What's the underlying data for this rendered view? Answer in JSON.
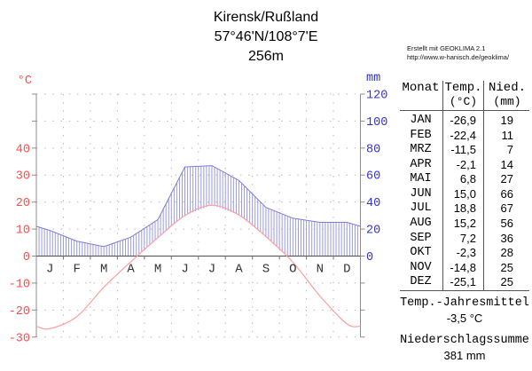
{
  "title": {
    "station": "Kirensk/Rußland",
    "coordinates": "57°46'N/108°7'E",
    "elevation": "256m"
  },
  "credit": {
    "line1": "Erstellt mit GEOKLIMA 2.1",
    "line2": "http://www.w-hanisch.de/geoklima/"
  },
  "chart_data": {
    "type": "line",
    "title": "Klimadiagramm Kirensk/Rußland",
    "categories": [
      "J",
      "F",
      "M",
      "A",
      "M",
      "J",
      "J",
      "A",
      "S",
      "O",
      "N",
      "D"
    ],
    "series": [
      {
        "name": "Temperatur",
        "unit": "°C",
        "axis": "left",
        "values": [
          -26.9,
          -22.4,
          -11.5,
          -2.1,
          6.8,
          15.0,
          18.8,
          15.2,
          7.2,
          -2.3,
          -14.8,
          -25.1
        ]
      },
      {
        "name": "Niederschlag",
        "unit": "mm",
        "axis": "right",
        "values": [
          19,
          11,
          7,
          14,
          27,
          66,
          67,
          56,
          36,
          28,
          25,
          25
        ]
      }
    ],
    "left_axis": {
      "label": "°C",
      "tick_labels": [
        40,
        30,
        20,
        10,
        0,
        -10,
        -20,
        -30
      ],
      "min": -30,
      "max": 60
    },
    "right_axis": {
      "label": "mm",
      "tick_labels": [
        120,
        100,
        80,
        60,
        40,
        20,
        0
      ],
      "min": 0,
      "max": 120
    },
    "grid": true,
    "legend": "none",
    "colors": {
      "temp_labels": "#ff4d4d",
      "precip_labels": "#3333cc",
      "temp_curve": "#ff9e9e",
      "precip_curve": "#7a7ad2",
      "hatch": "#9a9ae0",
      "month_text": "#333333"
    }
  },
  "table": {
    "headers": [
      {
        "label": "Monat",
        "unit": ""
      },
      {
        "label": "Temp.",
        "unit": "(°C)"
      },
      {
        "label": "Nied.",
        "unit": "(mm)"
      }
    ],
    "rows": [
      {
        "monat": "JAN",
        "temp": "-26,9",
        "nied": "19"
      },
      {
        "monat": "FEB",
        "temp": "-22,4",
        "nied": "11"
      },
      {
        "monat": "MRZ",
        "temp": "-11,5",
        "nied": "7"
      },
      {
        "monat": "APR",
        "temp": "-2,1",
        "nied": "14"
      },
      {
        "monat": "MAI",
        "temp": "6,8",
        "nied": "27"
      },
      {
        "monat": "JUN",
        "temp": "15,0",
        "nied": "66"
      },
      {
        "monat": "JUL",
        "temp": "18,8",
        "nied": "67"
      },
      {
        "monat": "AUG",
        "temp": "15,2",
        "nied": "56"
      },
      {
        "monat": "SEP",
        "temp": "7,2",
        "nied": "36"
      },
      {
        "monat": "OKT",
        "temp": "-2,3",
        "nied": "28"
      },
      {
        "monat": "NOV",
        "temp": "-14,8",
        "nied": "25"
      },
      {
        "monat": "DEZ",
        "temp": "-25,1",
        "nied": "25"
      }
    ]
  },
  "summary": {
    "temp_label": "Temp.-Jahresmittel",
    "temp_value": "-3,5 °C",
    "precip_label": "Niederschlagssumme",
    "precip_value": "381 mm"
  }
}
